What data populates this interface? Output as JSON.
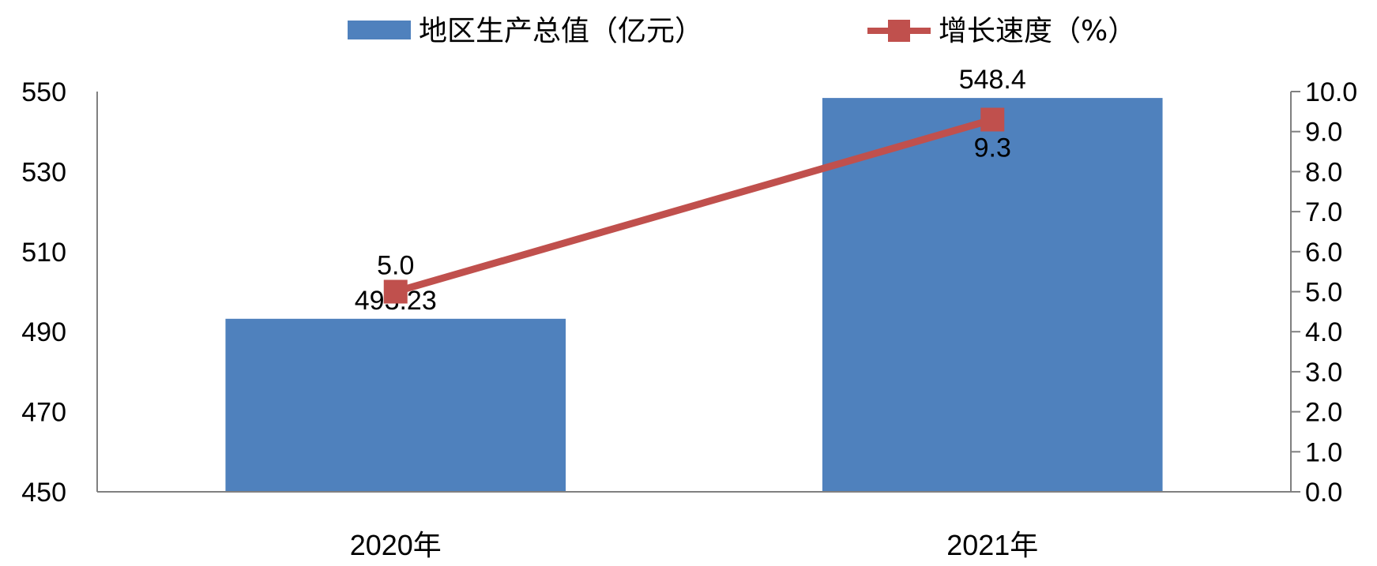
{
  "chart_data": {
    "type": "bar+line",
    "categories": [
      "2020年",
      "2021年"
    ],
    "series": [
      {
        "name": "地区生产总值（亿元）",
        "type": "bar",
        "axis": "left",
        "values": [
          493.23,
          548.4
        ],
        "labels": [
          "493.23",
          "548.4"
        ],
        "color": "#4F81BD"
      },
      {
        "name": "增长速度（%）",
        "type": "line",
        "axis": "right",
        "values": [
          5.0,
          9.3
        ],
        "labels": [
          "5.0",
          "9.3"
        ],
        "color": "#C0504D"
      }
    ],
    "y_left": {
      "min": 450,
      "max": 550,
      "ticks": [
        "450",
        "470",
        "490",
        "510",
        "530",
        "550"
      ]
    },
    "y_right": {
      "min": 0,
      "max": 10,
      "ticks": [
        "0.0",
        "1.0",
        "2.0",
        "3.0",
        "4.0",
        "5.0",
        "6.0",
        "7.0",
        "8.0",
        "9.0",
        "10.0"
      ]
    },
    "legend_position": "top",
    "grid": false
  }
}
